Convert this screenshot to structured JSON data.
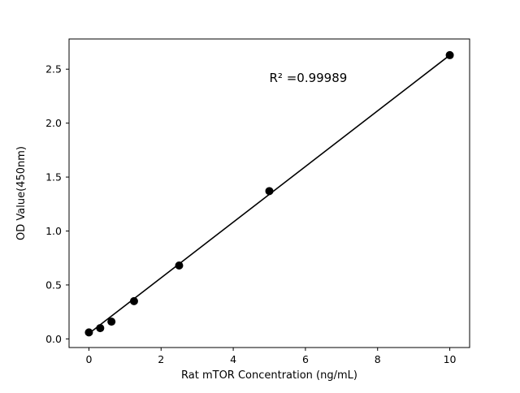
{
  "figure": {
    "background": "#ffffff"
  },
  "chart_data": {
    "type": "scatter",
    "title": "",
    "xlabel": "Rat mTOR Concentration (ng/mL)",
    "ylabel": "OD Value(450nm)",
    "x": [
      0,
      0.3125,
      0.625,
      1.25,
      2.5,
      5,
      10
    ],
    "y": [
      0.06,
      0.1,
      0.16,
      0.35,
      0.68,
      1.37,
      2.63
    ],
    "fit_line": {
      "x": [
        0,
        10
      ],
      "y": [
        0.05,
        2.63
      ]
    },
    "annotation": {
      "text": "R² =0.99989",
      "x": 5.0,
      "y": 2.38
    },
    "xlim": [
      -0.55,
      10.55
    ],
    "ylim": [
      -0.08,
      2.78
    ],
    "xticks": [
      0,
      2,
      4,
      6,
      8,
      10
    ],
    "xtick_labels": [
      "0",
      "2",
      "4",
      "6",
      "8",
      "10"
    ],
    "yticks": [
      0.0,
      0.5,
      1.0,
      1.5,
      2.0,
      2.5
    ],
    "ytick_labels": [
      "0.0",
      "0.5",
      "1.0",
      "1.5",
      "2.0",
      "2.5"
    ],
    "grid": false,
    "legend": "none",
    "marker_color": "#000000",
    "line_color": "#000000",
    "spine_color": "#000000",
    "marker_radius": 5
  }
}
